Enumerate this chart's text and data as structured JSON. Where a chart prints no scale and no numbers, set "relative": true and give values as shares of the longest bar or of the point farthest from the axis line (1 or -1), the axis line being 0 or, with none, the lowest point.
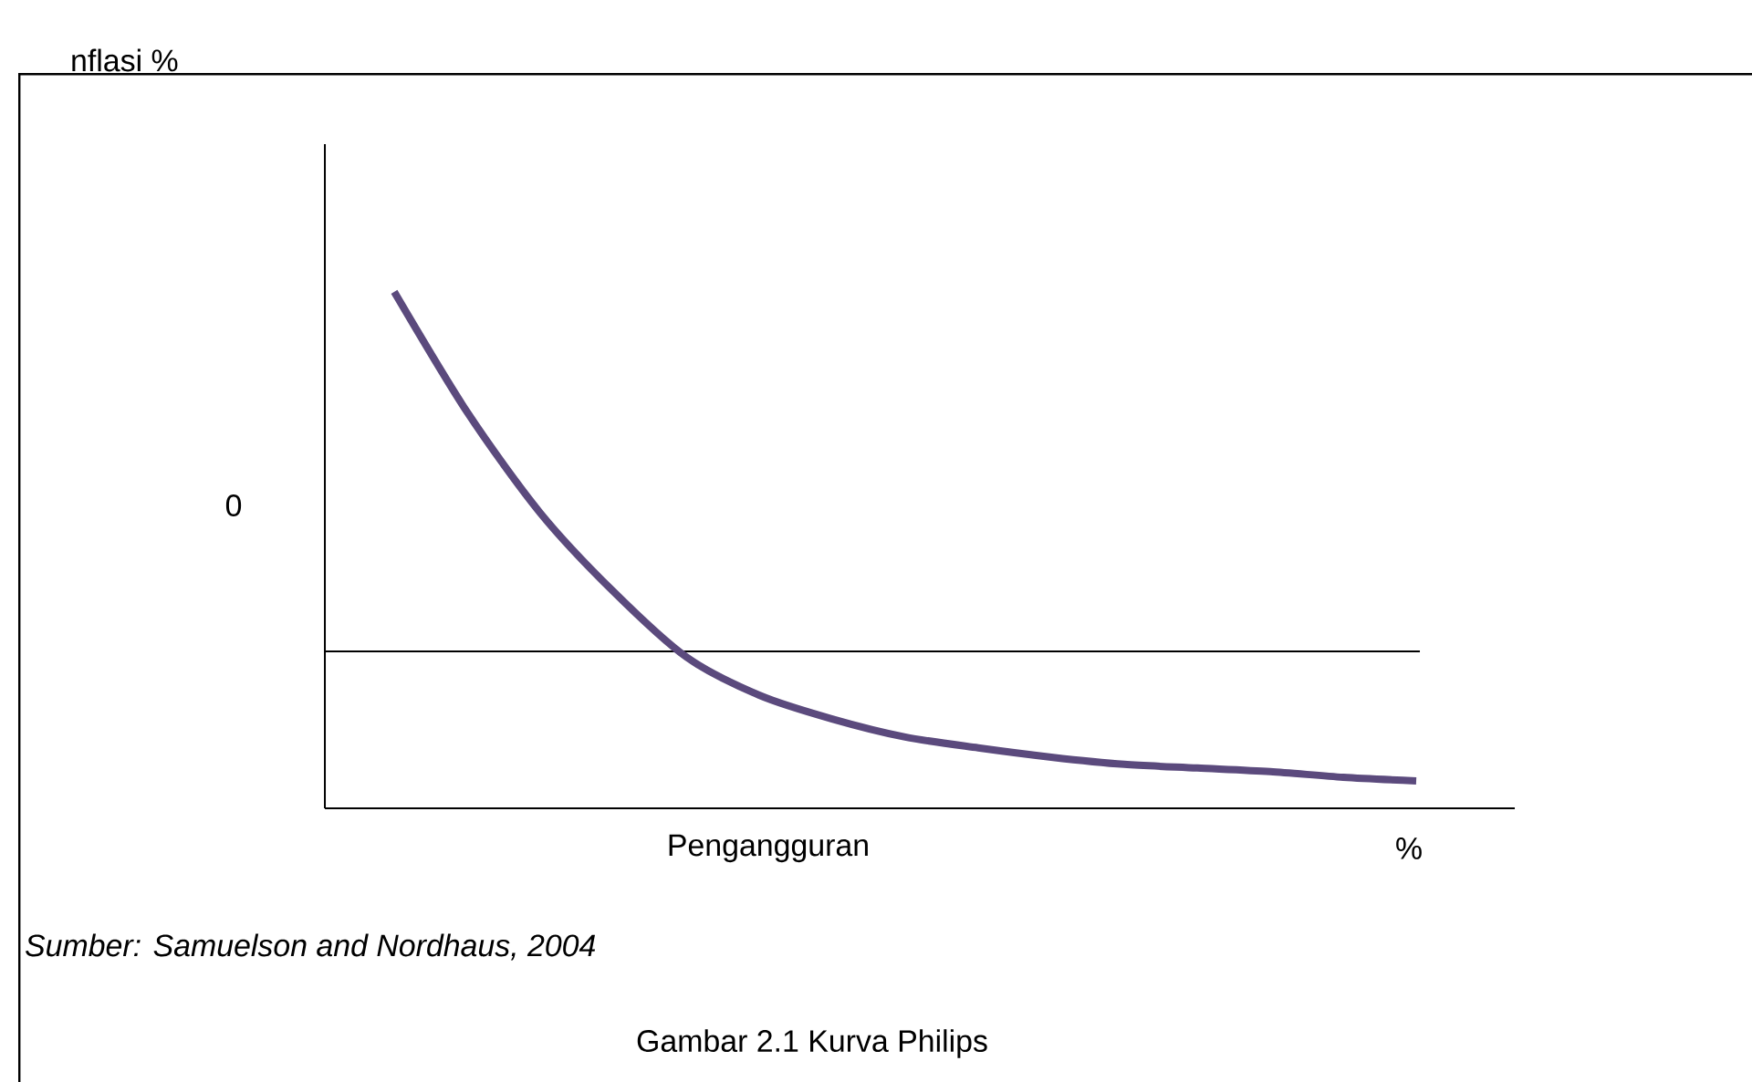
{
  "chart_data": {
    "type": "line",
    "relative": true,
    "title": "Gambar 2.1 Kurva Philips",
    "xlabel": "Pengangguran",
    "annotations": [
      "nflasi %",
      "0",
      "%",
      "Sumber: Samuelson and Nordhaus, 2004"
    ],
    "categories": [
      null,
      null,
      null,
      null,
      null,
      null,
      null,
      null,
      null,
      null,
      null,
      null,
      null,
      null,
      null
    ],
    "series": [
      {
        "color": "#5b4a7d",
        "values": [
          1.0,
          0.767,
          0.572,
          0.42,
          0.293,
          0.219,
          0.173,
          0.138,
          0.117,
          0.099,
          0.085,
          0.078,
          0.071,
          0.06,
          0.053
        ]
      }
    ],
    "ref_lines": [
      {
        "axis": "y",
        "value": 0.304,
        "color": "#000000"
      }
    ],
    "marker": "none",
    "line_style": "solid"
  }
}
